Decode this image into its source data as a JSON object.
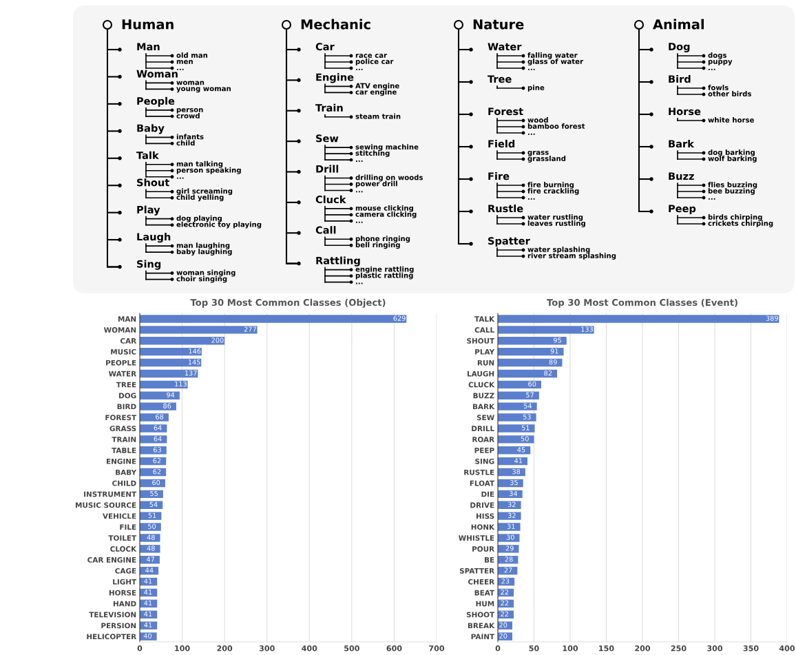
{
  "chart_data": [
    {
      "type": "other",
      "title": "Human",
      "categories": [
        "Man",
        "Woman",
        "People",
        "Baby",
        "Talk",
        "Shout",
        "Play",
        "Laugh",
        "Sing"
      ],
      "cell_labels": [
        [
          "old man",
          "men",
          "..."
        ],
        [
          "woman",
          "young woman"
        ],
        [
          "person",
          "crowd"
        ],
        [
          "infants",
          "child"
        ],
        [
          "man talking",
          "person speaking",
          "..."
        ],
        [
          "girl screaming",
          "child yelling"
        ],
        [
          "dog playing",
          "electronic toy playing"
        ],
        [
          "man laughing",
          "baby laughing"
        ],
        [
          "woman singing",
          "choir singing"
        ]
      ]
    },
    {
      "type": "other",
      "title": "Mechanic",
      "categories": [
        "Car",
        "Engine",
        "Train",
        "Sew",
        "Drill",
        "Cluck",
        "Call",
        "Rattling"
      ],
      "cell_labels": [
        [
          "race car",
          "police car",
          "..."
        ],
        [
          "ATV engine",
          "car engine"
        ],
        [
          "steam train"
        ],
        [
          "sewing machine",
          "stitching",
          "..."
        ],
        [
          "drilling on woods",
          "power drill",
          "..."
        ],
        [
          "mouse clicking",
          "camera clicking",
          "..."
        ],
        [
          "phone ringing",
          "bell ringing"
        ],
        [
          "engine rattling",
          "plastic rattling",
          "..."
        ]
      ]
    },
    {
      "type": "other",
      "title": "Nature",
      "categories": [
        "Water",
        "Tree",
        "Forest",
        "Field",
        "Fire",
        "Rustle",
        "Spatter"
      ],
      "cell_labels": [
        [
          "falling water",
          "glass of water",
          "..."
        ],
        [
          "pine"
        ],
        [
          "wood",
          "bamboo forest",
          "..."
        ],
        [
          "grass",
          "grassland"
        ],
        [
          "fire burning",
          "fire crackling",
          "..."
        ],
        [
          "water rustling",
          "leaves rustling"
        ],
        [
          "water splashing",
          "river stream splashing"
        ]
      ]
    },
    {
      "type": "other",
      "title": "Animal",
      "categories": [
        "Dog",
        "Bird",
        "Horse",
        "Bark",
        "Buzz",
        "Peep"
      ],
      "cell_labels": [
        [
          "dogs",
          "puppy",
          "..."
        ],
        [
          "fowls",
          "other birds"
        ],
        [
          "white horse"
        ],
        [
          "dog barking",
          "wolf barking"
        ],
        [
          "flies buzzing",
          "bee buzzing",
          "..."
        ],
        [
          "birds chirping",
          "crickets chirping"
        ]
      ]
    },
    {
      "type": "bar",
      "orientation": "horizontal",
      "title": "Top 30 Most Common Classes (Object)",
      "color": "#5b7fcc",
      "data_labels": true,
      "grid": "x",
      "xlim": [
        0,
        700
      ],
      "xticks": [
        0,
        100,
        200,
        300,
        400,
        500,
        600,
        700
      ],
      "categories": [
        "MAN",
        "WOMAN",
        "CAR",
        "MUSIC",
        "PEOPLE",
        "WATER",
        "TREE",
        "DOG",
        "BIRD",
        "FOREST",
        "GRASS",
        "TRAIN",
        "TABLE",
        "ENGINE",
        "BABY",
        "CHILD",
        "INSTRUMENT",
        "MUSIC SOURCE",
        "VEHICLE",
        "FILE",
        "TOILET",
        "CLOCK",
        "CAR ENGINE",
        "CAGE",
        "LIGHT",
        "HORSE",
        "HAND",
        "TELEVISION",
        "PERSION",
        "HELICOPTER"
      ],
      "values": [
        629,
        277,
        200,
        146,
        145,
        137,
        113,
        94,
        86,
        68,
        64,
        64,
        63,
        62,
        62,
        60,
        55,
        54,
        51,
        50,
        48,
        48,
        47,
        44,
        41,
        41,
        41,
        41,
        41,
        40
      ]
    },
    {
      "type": "bar",
      "orientation": "horizontal",
      "title": "Top 30 Most Common Classes (Event)",
      "color": "#5b7fcc",
      "data_labels": true,
      "grid": "x",
      "xlim": [
        0,
        400
      ],
      "xticks": [
        0,
        50,
        100,
        150,
        200,
        250,
        300,
        350,
        400
      ],
      "categories": [
        "TALK",
        "CALL",
        "SHOUT",
        "PLAY",
        "RUN",
        "LAUGH",
        "CLUCK",
        "BUZZ",
        "BARK",
        "SEW",
        "DRILL",
        "ROAR",
        "PEEP",
        "SING",
        "RUSTLE",
        "FLOAT",
        "DIE",
        "DRIVE",
        "HISS",
        "HONK",
        "WHISTLE",
        "POUR",
        "BE",
        "SPATTER",
        "CHEER",
        "BEAT",
        "HUM",
        "SHOOT",
        "BREAK",
        "PAINT"
      ],
      "values": [
        389,
        133,
        95,
        91,
        89,
        82,
        60,
        57,
        54,
        53,
        51,
        50,
        45,
        41,
        38,
        35,
        34,
        32,
        32,
        31,
        30,
        29,
        28,
        27,
        23,
        22,
        22,
        22,
        20,
        20
      ]
    }
  ]
}
